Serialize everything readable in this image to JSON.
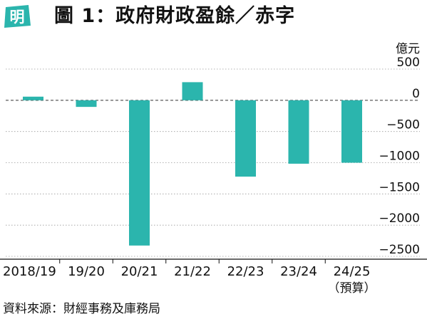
{
  "header": {
    "logo_text": "明",
    "title": "圖 1：政府財政盈餘／赤字"
  },
  "chart_data": {
    "type": "bar",
    "unit_label": "億元",
    "categories": [
      "2018/19",
      "19/20",
      "20/21",
      "21/22",
      "22/23",
      "23/24",
      "24/25"
    ],
    "category_sublabels": [
      "",
      "",
      "",
      "",
      "",
      "",
      "（預算）"
    ],
    "values": [
      58,
      -106,
      -2327,
      290,
      -1223,
      -1016,
      -1000
    ],
    "yticks": [
      500,
      0,
      -500,
      -1000,
      -1500,
      -2000,
      -2500
    ],
    "ytick_labels": [
      "500",
      "0",
      "−500",
      "−1000",
      "−1500",
      "−2000",
      "−2500"
    ],
    "ylim": [
      -2500,
      500
    ],
    "grid": true,
    "colors": {
      "bar": "#2bb5ad",
      "logo": "#2bb5ad"
    }
  },
  "footer": {
    "source": "資料來源：財經事務及庫務局"
  }
}
